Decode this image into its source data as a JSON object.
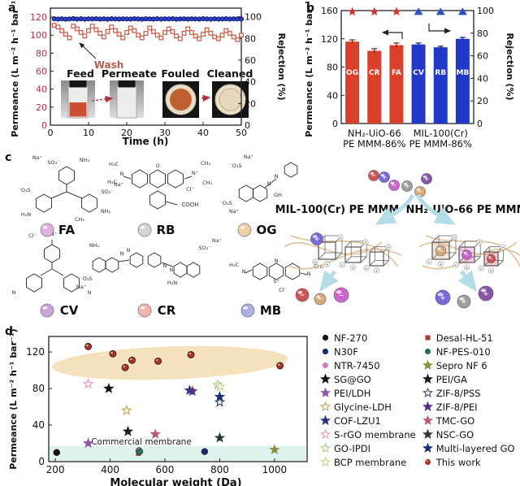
{
  "panel_labels": {
    "a": "a",
    "b": "b",
    "c": "c",
    "d": "d"
  },
  "colors": {
    "red_series": "#c9604d",
    "blue_series": "#2236b4",
    "red_bar": "#d8402a",
    "blue_bar": "#2238c8",
    "star_red": "#cc3333",
    "tri_blue": "#2d4fc4",
    "wash_text": "#b4604f",
    "ellipse": "#f3ddb0",
    "band": "#def2ee",
    "arrow_blue": "#b5dde8",
    "strand": "#dcc096"
  },
  "chart_data": [
    {
      "id": "a",
      "type": "line",
      "xlabel": "Time (h)",
      "ylabel_left": "Permeance (L m⁻² h⁻¹ bar⁻¹)",
      "ylabel_right": "Rejection (%)",
      "xlim": [
        0,
        50
      ],
      "ylim_left": [
        0,
        130
      ],
      "ylim_right": [
        0,
        108
      ],
      "xticks": [
        0,
        10,
        20,
        30,
        40,
        50
      ],
      "yticks_left": [
        0,
        20,
        40,
        60,
        80,
        100,
        120
      ],
      "yticks_right": [
        0,
        20,
        40,
        60,
        80,
        100
      ],
      "annotations": {
        "wash": "Wash",
        "photos": [
          "Feed",
          "Permeate",
          "Fouled",
          "Cleaned"
        ]
      },
      "series": [
        {
          "name": "Permeance",
          "marker": "square",
          "axis": "left",
          "x": [
            1,
            2,
            3,
            4,
            5,
            6,
            7,
            8,
            9,
            10,
            11,
            12,
            13,
            14,
            15,
            16,
            17,
            18,
            19,
            20,
            21,
            22,
            23,
            24,
            25,
            26,
            27,
            28,
            29,
            30,
            31,
            32,
            33,
            34,
            35,
            36,
            37,
            38,
            39,
            40,
            41,
            42,
            43,
            44,
            45,
            46,
            47,
            48,
            49,
            50
          ],
          "y": [
            111,
            109,
            105,
            101,
            97,
            110,
            107,
            103,
            99,
            105,
            110,
            106,
            102,
            98,
            104,
            109,
            105,
            101,
            97,
            103,
            108,
            105,
            100,
            97,
            102,
            108,
            104,
            100,
            97,
            103,
            107,
            104,
            99,
            96,
            102,
            107,
            103,
            99,
            96,
            101,
            106,
            102,
            98,
            96,
            100,
            105,
            102,
            98,
            95,
            100
          ]
        },
        {
          "name": "Rejection",
          "marker": "circle",
          "axis": "right",
          "x": [
            1,
            2,
            3,
            4,
            5,
            6,
            7,
            8,
            9,
            10,
            11,
            12,
            13,
            14,
            15,
            16,
            17,
            18,
            19,
            20,
            21,
            22,
            23,
            24,
            25,
            26,
            27,
            28,
            29,
            30,
            31,
            32,
            33,
            34,
            35,
            36,
            37,
            38,
            39,
            40,
            41,
            42,
            43,
            44,
            45,
            46,
            47,
            48,
            49,
            50
          ],
          "y": [
            98.2,
            97.9,
            98.1,
            97.8,
            98.0,
            98.3,
            97.9,
            98.2,
            97.8,
            98.1,
            98.0,
            98.2,
            97.9,
            98.1,
            97.8,
            98.2,
            98.0,
            97.9,
            98.1,
            98.0,
            97.9,
            98.2,
            98.0,
            97.8,
            98.1,
            98.0,
            97.9,
            98.2,
            97.9,
            98.1,
            98.0,
            98.2,
            97.8,
            98.0,
            98.1,
            97.9,
            98.1,
            98.0,
            97.9,
            98.2,
            98.0,
            97.8,
            98.1,
            97.9,
            98.0,
            98.2,
            97.9,
            98.1,
            98.0,
            97.9
          ]
        }
      ]
    },
    {
      "id": "b",
      "type": "bar",
      "ylabel_left": "Permeance (L m⁻² h⁻¹ bar⁻¹)",
      "ylabel_right": "Rejection (%)",
      "ylim_left": [
        0,
        160
      ],
      "ylim_right": [
        0,
        100
      ],
      "yticks_left": [
        0,
        40,
        80,
        120,
        160
      ],
      "yticks_right": [
        0,
        20,
        40,
        60,
        80,
        100
      ],
      "categories": [
        "OG",
        "CR",
        "FA",
        "CV",
        "RB",
        "MB"
      ],
      "values": [
        116,
        103,
        111,
        112,
        108,
        120
      ],
      "errors": [
        2.5,
        3,
        3,
        2,
        1.5,
        2
      ],
      "rejection": [
        99,
        99,
        99,
        99,
        99,
        99
      ],
      "rejection_marker": [
        "star",
        "star",
        "star",
        "triangle",
        "triangle",
        "triangle"
      ],
      "group_labels": [
        [
          "NH₂-UiO-66",
          "PE MMM-86%"
        ],
        [
          "MIL-100(Cr)",
          "PE MMM-86%"
        ]
      ]
    },
    {
      "id": "d",
      "type": "scatter",
      "xlabel": "Molecular weight (Da)",
      "ylabel": "Permeance (L m⁻² h⁻¹ bar⁻¹)",
      "xlim": [
        176,
        1119
      ],
      "ylim": [
        0,
        137
      ],
      "xticks": [
        200,
        400,
        600,
        800,
        1000
      ],
      "yticks": [
        0,
        40,
        80,
        120
      ],
      "annotation": "Commercial membrane",
      "highlight_ellipse": {
        "center_da": 618,
        "center_val": 108,
        "rx_da": 430,
        "ry_val": 18
      },
      "commercial_band": {
        "val_range": [
          0,
          17
        ]
      },
      "series": [
        {
          "name": "NF-270",
          "marker": "circle",
          "fill": true,
          "color": "#111111",
          "points": [
            [
              205,
              10
            ]
          ]
        },
        {
          "name": "N30F",
          "marker": "circle",
          "fill": true,
          "color": "#1b2a70",
          "points": [
            [
              745,
              11
            ]
          ]
        },
        {
          "name": "NTR-7450",
          "marker": "circle",
          "fill": true,
          "color": "#cf7fc4",
          "points": [
            [
              505,
              12
            ]
          ]
        },
        {
          "name": "SG@GO",
          "marker": "star",
          "fill": true,
          "color": "#111111",
          "points": [
            [
              395,
              80
            ]
          ]
        },
        {
          "name": "PEI/LDH",
          "marker": "star",
          "fill": true,
          "color": "#9054b0",
          "points": [
            [
              320,
              20
            ]
          ]
        },
        {
          "name": "Glycine-LDH",
          "marker": "star",
          "fill": false,
          "color": "#c8a050",
          "points": [
            [
              460,
              56
            ]
          ]
        },
        {
          "name": "COF-LZU1",
          "marker": "star",
          "fill": true,
          "color": "#26357e",
          "points": [
            [
              690,
              78
            ]
          ]
        },
        {
          "name": "S-rGO membrane",
          "marker": "star",
          "fill": false,
          "color": "#f090c0",
          "points": [
            [
              320,
              85
            ]
          ]
        },
        {
          "name": "GO-IPDI",
          "marker": "star",
          "fill": false,
          "color": "#a0d080",
          "points": [
            [
              792,
              84
            ]
          ]
        },
        {
          "name": "BCP membrane",
          "marker": "star",
          "fill": false,
          "color": "#c2cc8a",
          "points": [
            [
              801,
              82
            ]
          ]
        },
        {
          "name": "Desal-HL-51",
          "marker": "square",
          "fill": true,
          "color": "#a63b30",
          "points": [
            [
              503,
              9
            ]
          ]
        },
        {
          "name": "NF-PES-010",
          "marker": "circle",
          "fill": true,
          "color": "#2e6e60",
          "points": [
            [
              508,
              11
            ]
          ]
        },
        {
          "name": "Sepro NF 6",
          "marker": "star",
          "fill": true,
          "color": "#8f8f3d",
          "points": [
            [
              1000,
              13
            ]
          ]
        },
        {
          "name": "PEI/GA",
          "marker": "star",
          "fill": true,
          "color": "#1a1a1a",
          "points": [
            [
              465,
              33
            ]
          ]
        },
        {
          "name": "ZIF-8/PSS",
          "marker": "star",
          "fill": false,
          "color": "#3c3c5a",
          "points": [
            [
              800,
              65
            ]
          ]
        },
        {
          "name": "ZIF-8/PEI",
          "marker": "star",
          "fill": true,
          "color": "#5c2d86",
          "points": [
            [
              700,
              77
            ]
          ]
        },
        {
          "name": "TMC-GO",
          "marker": "star",
          "fill": true,
          "color": "#b55b6b",
          "points": [
            [
              565,
              30
            ]
          ]
        },
        {
          "name": "NSC-GO",
          "marker": "star",
          "fill": true,
          "color": "#2c3b2e",
          "points": [
            [
              800,
              26
            ]
          ]
        },
        {
          "name": "Multi-layered GO",
          "marker": "star",
          "fill": true,
          "color": "#1c2c80",
          "points": [
            [
              800,
              71
            ]
          ]
        },
        {
          "name": "This work",
          "marker": "circle",
          "fill": true,
          "color": "#a83524",
          "points": [
            [
              320,
              126
            ],
            [
              410,
              118
            ],
            [
              455,
              103
            ],
            [
              480,
              111
            ],
            [
              575,
              110
            ],
            [
              695,
              117
            ],
            [
              1020,
              105
            ]
          ]
        }
      ]
    }
  ],
  "panel_c": {
    "dyes": [
      {
        "label": "FA",
        "sphere_color": "#dfb3e0"
      },
      {
        "label": "RB",
        "sphere_color": "#d5d5d5"
      },
      {
        "label": "OG",
        "sphere_color": "#eccfa5"
      },
      {
        "label": "CV",
        "sphere_color": "#c9a8d8"
      },
      {
        "label": "CR",
        "sphere_color": "#f0b5b0"
      },
      {
        "label": "MB",
        "sphere_color": "#aab0e0"
      }
    ],
    "atoms": {
      "FA": [
        "Na⁺",
        "SO₃⁻",
        "NH₂",
        "⁻O₃S",
        "SO₃⁻",
        "Na⁺",
        "H₂N",
        "CH₃",
        "NH₂"
      ],
      "RB": [
        "H₃C",
        "H₃C",
        "N",
        "O",
        "N⁺",
        "CH₃",
        "CH₃",
        "Cl⁻",
        "COOH"
      ],
      "OG": [
        "Na⁺",
        "⁻O₃S",
        "N",
        "N",
        "OH",
        "⁻O₃S",
        "Na⁺"
      ],
      "CV": [
        "Cl⁻",
        "N⁺",
        "N",
        "N"
      ],
      "CR": [
        "NH₂",
        "N",
        "N",
        "N",
        "N",
        "SO₃⁻",
        "Na⁺",
        "H₂N",
        "⁻O₃S",
        "Na⁺"
      ],
      "MB": [
        "N",
        "S⁺",
        "Cl⁻",
        "N",
        "N",
        "H₃C",
        "CH₃"
      ]
    },
    "membrane_left": "MIL-100(Cr) PE MMM",
    "membrane_right": "NH₂-UiO-66 PE MMM",
    "top_spheres": [
      {
        "color": "#cc5555",
        "sign": "−"
      },
      {
        "color": "#7a6ad8",
        "sign": "+"
      },
      {
        "color": "#cc66cc",
        "sign": "−"
      },
      {
        "color": "#a0a0a0",
        "sign": "+"
      },
      {
        "color": "#8855aa",
        "sign": "+"
      },
      {
        "color": "#d8aa77",
        "sign": "−"
      }
    ],
    "left_pass_spheres": [
      {
        "color": "#cc5555",
        "sign": "−"
      },
      {
        "color": "#d8aa77",
        "sign": "−"
      },
      {
        "color": "#cc66cc",
        "sign": "−"
      }
    ],
    "right_pass_spheres": [
      {
        "color": "#7a6ad8",
        "sign": "+"
      },
      {
        "color": "#a0a0a0",
        "sign": "+"
      },
      {
        "color": "#8855aa",
        "sign": "+"
      }
    ],
    "cube_tints_right": [
      "#d8aa77",
      "#cc66cc",
      "#cc5555"
    ]
  }
}
